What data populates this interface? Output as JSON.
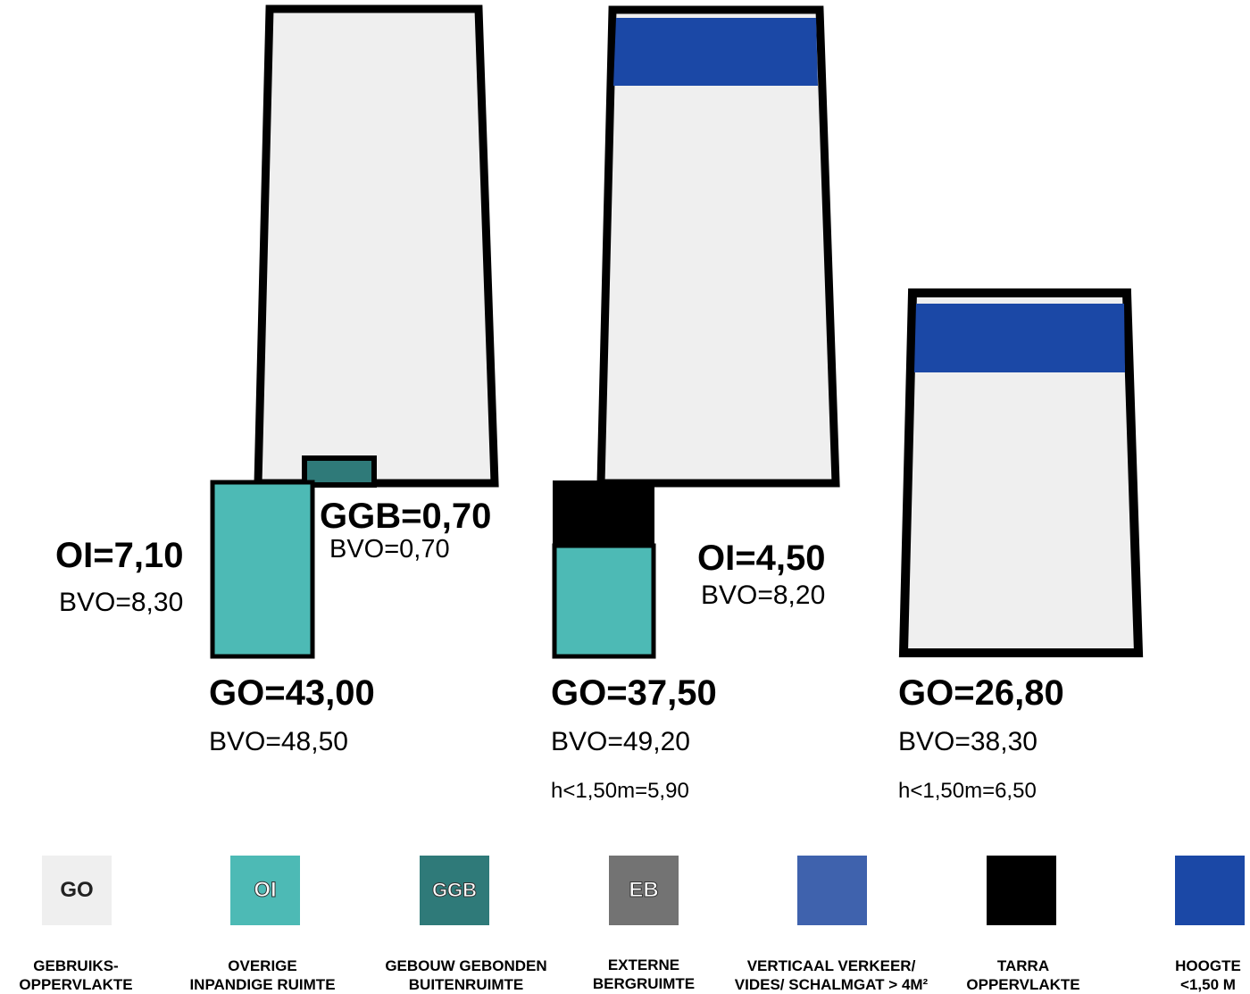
{
  "colors": {
    "go": "#efefef",
    "oi": "#4dbab5",
    "ggb": "#2f7a79",
    "eb": "#737373",
    "verkeer": "#3f62ad",
    "tarra": "#000000",
    "hoogte": "#1b48a6"
  },
  "unit1": {
    "oi_title": "OI=7,10",
    "oi_bvo": "BVO=8,30",
    "ggb_title": "GGB=0,70",
    "ggb_bvo": "BVO=0,70",
    "go_title": "GO=43,00",
    "go_bvo": "BVO=48,50"
  },
  "unit2": {
    "oi_title": "OI=4,50",
    "oi_bvo": "BVO=8,20",
    "go_title": "GO=37,50",
    "go_bvo": "BVO=49,20",
    "low_height": "h<1,50m=5,90"
  },
  "unit3": {
    "go_title": "GO=26,80",
    "go_bvo": "BVO=38,30",
    "low_height": "h<1,50m=6,50"
  },
  "legend": [
    {
      "code": "GO",
      "line1": "GEBRUIKS-",
      "line2": "OPPERVLAKTE"
    },
    {
      "code": "OI",
      "line1": "OVERIGE",
      "line2": "INPANDIGE RUIMTE"
    },
    {
      "code": "GGB",
      "line1": "GEBOUW GEBONDEN",
      "line2": "BUITENRUIMTE"
    },
    {
      "code": "EB",
      "line1": "EXTERNE",
      "line2": "BERGRUIMTE"
    },
    {
      "code": "",
      "line1": "VERTICAAL VERKEER/",
      "line2": "VIDES/ SCHALMGAT > 4M²"
    },
    {
      "code": "",
      "line1": "TARRA",
      "line2": "OPPERVLAKTE"
    },
    {
      "code": "",
      "line1": "HOOGTE",
      "line2": "<1,50 M"
    }
  ]
}
